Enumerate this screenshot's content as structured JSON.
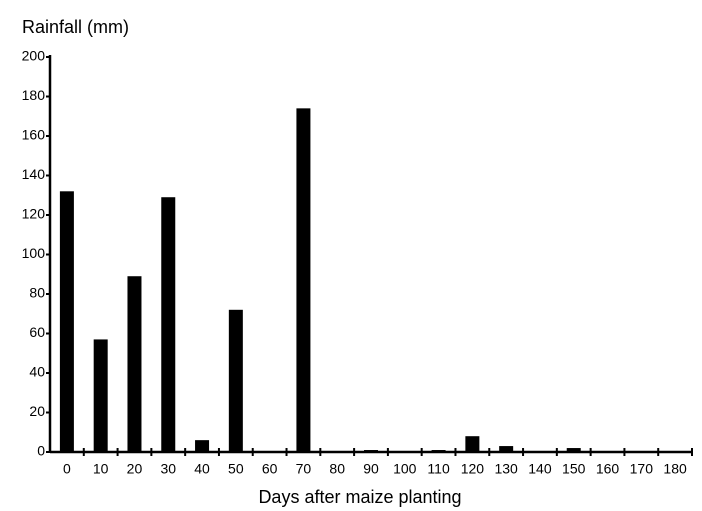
{
  "chart_data": {
    "type": "bar",
    "y_axis_label": "Rainfall (mm)",
    "x_axis_label": "Days after maize planting",
    "categories": [
      "0",
      "10",
      "20",
      "30",
      "40",
      "50",
      "60",
      "70",
      "80",
      "90",
      "100",
      "110",
      "120",
      "130",
      "140",
      "150",
      "160",
      "170",
      "180"
    ],
    "values": [
      132,
      57,
      89,
      129,
      6,
      72,
      0,
      174,
      0,
      1,
      0,
      1,
      8,
      3,
      0,
      2,
      0,
      0,
      0
    ],
    "color": "#000000",
    "ylim": [
      0,
      200
    ],
    "yticks": [
      0,
      20,
      40,
      60,
      80,
      100,
      120,
      140,
      160,
      180,
      200
    ],
    "grid": false
  }
}
